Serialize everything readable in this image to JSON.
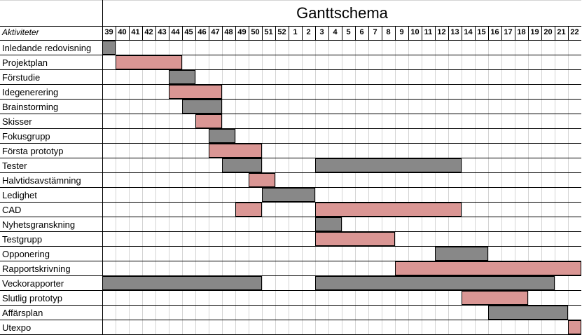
{
  "chart_data": {
    "type": "gantt",
    "title": "Ganttschema",
    "row_header": "Aktiviteter",
    "weeks": [
      "39",
      "40",
      "41",
      "42",
      "43",
      "44",
      "45",
      "46",
      "47",
      "48",
      "49",
      "50",
      "51",
      "52",
      "1",
      "2",
      "3",
      "4",
      "5",
      "6",
      "7",
      "8",
      "9",
      "10",
      "11",
      "12",
      "13",
      "14",
      "15",
      "16",
      "17",
      "18",
      "19",
      "20",
      "21",
      "22"
    ],
    "colors": {
      "gray": "#888888",
      "pink": "#DA9694"
    },
    "tasks": [
      {
        "name": "Inledande redovisning",
        "bars": [
          {
            "start": "39",
            "end": "39",
            "color": "gray"
          }
        ]
      },
      {
        "name": "Projektplan",
        "bars": [
          {
            "start": "40",
            "end": "44",
            "color": "pink"
          }
        ]
      },
      {
        "name": "Förstudie",
        "bars": [
          {
            "start": "44",
            "end": "45",
            "color": "gray"
          }
        ]
      },
      {
        "name": "Idegenerering",
        "bars": [
          {
            "start": "44",
            "end": "47",
            "color": "pink"
          }
        ]
      },
      {
        "name": "Brainstorming",
        "bars": [
          {
            "start": "45",
            "end": "47",
            "color": "gray"
          }
        ]
      },
      {
        "name": "Skisser",
        "bars": [
          {
            "start": "46",
            "end": "47",
            "color": "pink"
          }
        ]
      },
      {
        "name": "Fokusgrupp",
        "bars": [
          {
            "start": "47",
            "end": "48",
            "color": "gray"
          }
        ]
      },
      {
        "name": "Första prototyp",
        "bars": [
          {
            "start": "47",
            "end": "50",
            "color": "pink"
          }
        ]
      },
      {
        "name": "Tester",
        "bars": [
          {
            "start": "48",
            "end": "50",
            "color": "gray"
          },
          {
            "start": "3",
            "end": "13",
            "color": "gray"
          }
        ]
      },
      {
        "name": "Halvtidsavstämning",
        "bars": [
          {
            "start": "50",
            "end": "51",
            "color": "pink"
          }
        ]
      },
      {
        "name": "Ledighet",
        "bars": [
          {
            "start": "51",
            "end": "2",
            "color": "gray"
          }
        ]
      },
      {
        "name": "CAD",
        "bars": [
          {
            "start": "49",
            "end": "50",
            "color": "pink"
          },
          {
            "start": "3",
            "end": "13",
            "color": "pink"
          }
        ]
      },
      {
        "name": "Nyhetsgranskning",
        "bars": [
          {
            "start": "3",
            "end": "4",
            "color": "gray"
          }
        ]
      },
      {
        "name": "Testgrupp",
        "bars": [
          {
            "start": "3",
            "end": "8",
            "color": "pink"
          }
        ]
      },
      {
        "name": "Opponering",
        "bars": [
          {
            "start": "12",
            "end": "15",
            "color": "gray"
          }
        ]
      },
      {
        "name": "Rapportskrivning",
        "bars": [
          {
            "start": "9",
            "end": "22",
            "color": "pink"
          }
        ]
      },
      {
        "name": "Veckorapporter",
        "bars": [
          {
            "start": "39",
            "end": "50",
            "color": "gray"
          },
          {
            "start": "3",
            "end": "20",
            "color": "gray"
          }
        ]
      },
      {
        "name": "Slutlig prototyp",
        "bars": [
          {
            "start": "14",
            "end": "18",
            "color": "pink"
          }
        ]
      },
      {
        "name": "Affärsplan",
        "bars": [
          {
            "start": "16",
            "end": "21",
            "color": "gray"
          }
        ]
      },
      {
        "name": "Utexpo",
        "bars": [
          {
            "start": "22",
            "end": "22",
            "color": "pink"
          }
        ]
      }
    ]
  }
}
